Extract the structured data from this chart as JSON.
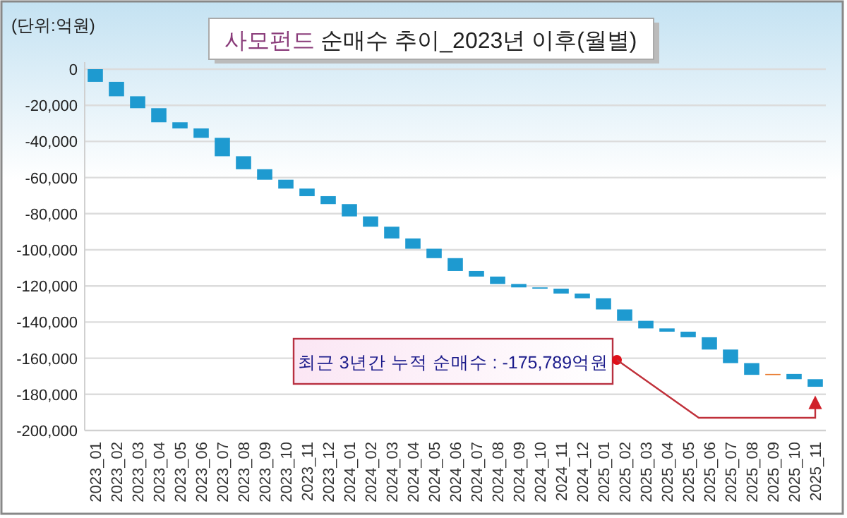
{
  "chart_data": {
    "type": "bar",
    "title": "사모펀드 순매수 추이_2023년 이후(월별)",
    "ylabel": "(단위:억원)",
    "categories": [
      "2023_01",
      "2023_02",
      "2023_03",
      "2023_04",
      "2023_05",
      "2023_06",
      "2023_07",
      "2023_08",
      "2023_09",
      "2023_10",
      "2023_11",
      "2023_12",
      "2024_01",
      "2024_02",
      "2024_03",
      "2024_04",
      "2024_05",
      "2024_06",
      "2024_07",
      "2024_08",
      "2024_09",
      "2024_10",
      "2024_11",
      "2024_12",
      "2025_01",
      "2025_02",
      "2025_03",
      "2025_04",
      "2025_05",
      "2025_06",
      "2025_07",
      "2025_08",
      "2025_09",
      "2025_10",
      "2025_11"
    ],
    "values": [
      -7000,
      -8000,
      -6600,
      -7800,
      -3400,
      -5200,
      -10200,
      -7200,
      -5800,
      -4900,
      -4200,
      -4400,
      -6800,
      -5700,
      -6500,
      -5700,
      -5200,
      -7100,
      -3100,
      -4100,
      -1900,
      -700,
      -2700,
      -2600,
      -6200,
      -6300,
      -4200,
      -1800,
      -3100,
      -6800,
      -7500,
      -6500,
      500,
      -2900,
      -4200
    ],
    "base": [
      0,
      -7000,
      -15000,
      -21600,
      -29400,
      -32800,
      -38000,
      -48200,
      -55400,
      -61200,
      -66100,
      -70300,
      -74700,
      -81500,
      -87200,
      -93700,
      -99400,
      -104600,
      -111700,
      -114800,
      -118900,
      -120800,
      -121500,
      -124200,
      -126800,
      -133000,
      -139300,
      -143500,
      -145300,
      -148400,
      -155200,
      -162700,
      -169200,
      -168700,
      -171600
    ],
    "colors": [
      "#1e9ad0",
      "#1e9ad0",
      "#1e9ad0",
      "#1e9ad0",
      "#1e9ad0",
      "#1e9ad0",
      "#1e9ad0",
      "#1e9ad0",
      "#1e9ad0",
      "#1e9ad0",
      "#1e9ad0",
      "#1e9ad0",
      "#1e9ad0",
      "#1e9ad0",
      "#1e9ad0",
      "#1e9ad0",
      "#1e9ad0",
      "#1e9ad0",
      "#1e9ad0",
      "#1e9ad0",
      "#1e9ad0",
      "#1e9ad0",
      "#1e9ad0",
      "#1e9ad0",
      "#1e9ad0",
      "#1e9ad0",
      "#1e9ad0",
      "#1e9ad0",
      "#1e9ad0",
      "#1e9ad0",
      "#1e9ad0",
      "#1e9ad0",
      "#e8782c",
      "#1e9ad0",
      "#1e9ad0"
    ],
    "ylim": [
      -200000,
      0
    ],
    "yticks": [
      {
        "value": 0,
        "label": "0"
      },
      {
        "value": -20000,
        "label": "-20,000"
      },
      {
        "value": -40000,
        "label": "-40,000"
      },
      {
        "value": -60000,
        "label": "-60,000"
      },
      {
        "value": -80000,
        "label": "-80,000"
      },
      {
        "value": -100000,
        "label": "-100,000"
      },
      {
        "value": -120000,
        "label": "-120,000"
      },
      {
        "value": -140000,
        "label": "-140,000"
      },
      {
        "value": -160000,
        "label": "-160,000"
      },
      {
        "value": -180000,
        "label": "-180,000"
      },
      {
        "value": -200000,
        "label": "-200,000"
      }
    ],
    "grid": "y",
    "annotations": [
      "최근 3년간 누적 순매수 : -175,789억원"
    ]
  }
}
